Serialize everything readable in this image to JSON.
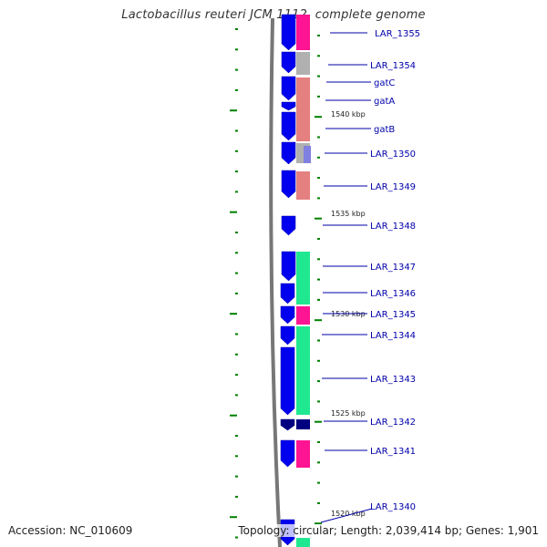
{
  "title": "Lactobacillus reuteri JCM 1112, complete genome",
  "footer": {
    "accession": "Accession: NC_010609",
    "stats": "Topology: circular; Length: 2,039,414 bp; Genes: 1,901"
  },
  "colors": {
    "backbone": "#777777",
    "cds": "#0000ee",
    "cds_dark": "#000080",
    "label": "#0000aa",
    "tick": "#008000",
    "func_pink": "#ff1493",
    "func_gray": "#b0b0b0",
    "func_salmon": "#e58080",
    "func_green": "#20e890",
    "func_violet": "#8080e0"
  },
  "scale_labels": [
    "1540 kbp",
    "1535 kbp",
    "1530 kbp",
    "1525 kbp",
    "1520 kbp"
  ],
  "genes": [
    {
      "name": "LAR_1355"
    },
    {
      "name": "LAR_1354"
    },
    {
      "name": "gatC"
    },
    {
      "name": "gatA"
    },
    {
      "name": "gatB"
    },
    {
      "name": "LAR_1350"
    },
    {
      "name": "LAR_1349"
    },
    {
      "name": "LAR_1348"
    },
    {
      "name": "LAR_1347"
    },
    {
      "name": "LAR_1346"
    },
    {
      "name": "LAR_1345"
    },
    {
      "name": "LAR_1344"
    },
    {
      "name": "LAR_1343"
    },
    {
      "name": "LAR_1342"
    },
    {
      "name": "LAR_1341"
    },
    {
      "name": "LAR_1340"
    }
  ]
}
